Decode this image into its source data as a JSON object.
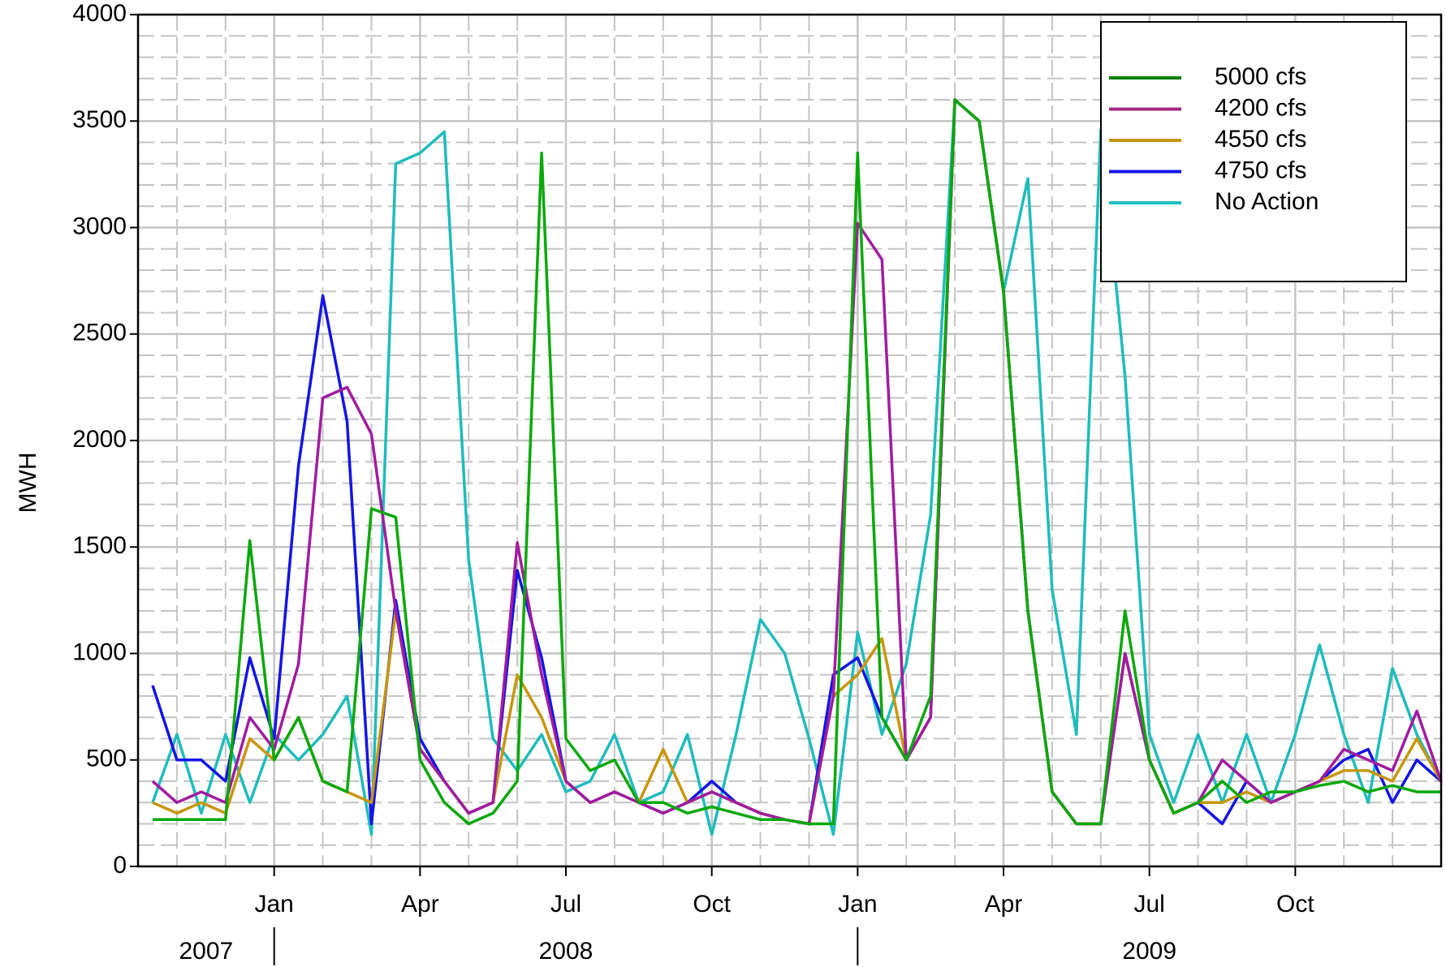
{
  "chart_data": {
    "type": "line",
    "y_label": "MWH",
    "x": [
      0.5,
      1,
      1.5,
      2,
      2.5,
      3,
      3.5,
      4,
      4.5,
      5,
      5.5,
      6,
      6.5,
      7,
      7.5,
      8,
      8.5,
      9,
      9.5,
      10,
      10.5,
      11,
      11.5,
      12,
      12.5,
      13,
      13.5,
      14,
      14.5,
      15,
      15.5,
      16,
      16.5,
      17,
      17.5,
      18,
      18.5,
      19,
      19.5,
      20,
      20.5,
      21,
      21.5,
      22,
      22.5,
      23,
      23.5,
      24,
      24.5,
      25,
      25.5,
      26,
      26.5,
      27
    ],
    "series": [
      {
        "name": "5000 cfs",
        "color": "#0aa80a",
        "legend_color": "#008000",
        "values": [
          220,
          220,
          220,
          220,
          1530,
          500,
          700,
          400,
          350,
          1680,
          1640,
          500,
          300,
          200,
          250,
          400,
          3350,
          600,
          450,
          500,
          300,
          300,
          250,
          280,
          250,
          220,
          220,
          200,
          200,
          3350,
          700,
          500,
          800,
          3600,
          3500,
          2700,
          1200,
          350,
          200,
          200,
          1200,
          500,
          250,
          300,
          400,
          300,
          350,
          350,
          380,
          400,
          350,
          380,
          350,
          350
        ]
      },
      {
        "name": "4200 cfs",
        "color": "#a01ca0",
        "legend_color": "#a02c80",
        "values": [
          400,
          300,
          350,
          300,
          700,
          550,
          950,
          2200,
          2250,
          2030,
          1200,
          550,
          400,
          250,
          300,
          1520,
          900,
          400,
          300,
          350,
          300,
          250,
          300,
          350,
          300,
          250,
          220,
          200,
          800,
          3020,
          2850,
          500,
          700,
          3600,
          3500,
          2700,
          1200,
          350,
          200,
          200,
          1000,
          500,
          250,
          300,
          500,
          400,
          300,
          350,
          400,
          550,
          500,
          450,
          730,
          400
        ]
      },
      {
        "name": "4550 cfs",
        "color": "#c8960a",
        "legend_color": "#c8960a",
        "values": [
          300,
          250,
          300,
          250,
          600,
          500,
          700,
          400,
          350,
          300,
          1200,
          550,
          400,
          250,
          300,
          900,
          700,
          400,
          300,
          350,
          300,
          550,
          300,
          350,
          300,
          250,
          220,
          200,
          800,
          900,
          1070,
          500,
          700,
          3600,
          3500,
          2700,
          1200,
          350,
          200,
          200,
          1000,
          500,
          250,
          300,
          300,
          350,
          300,
          350,
          400,
          450,
          450,
          400,
          600,
          400
        ]
      },
      {
        "name": "4750 cfs",
        "color": "#1414e6",
        "legend_color": "#1414e6",
        "values": [
          850,
          500,
          500,
          400,
          980,
          600,
          1880,
          2680,
          2090,
          200,
          1250,
          600,
          400,
          250,
          300,
          1390,
          980,
          400,
          300,
          350,
          300,
          250,
          300,
          400,
          300,
          250,
          220,
          200,
          900,
          980,
          700,
          500,
          700,
          3600,
          3500,
          2700,
          1200,
          350,
          200,
          200,
          1000,
          500,
          250,
          300,
          200,
          400,
          300,
          350,
          400,
          500,
          550,
          300,
          500,
          400
        ]
      },
      {
        "name": "No Action",
        "color": "#1ebcbc",
        "legend_color": "#20c0c0",
        "values": [
          300,
          620,
          250,
          620,
          300,
          620,
          500,
          620,
          800,
          150,
          3300,
          3350,
          3450,
          1440,
          600,
          450,
          620,
          350,
          400,
          620,
          300,
          350,
          620,
          150,
          620,
          1160,
          1000,
          600,
          150,
          1100,
          620,
          950,
          1650,
          3600,
          3500,
          2700,
          3230,
          1300,
          620,
          3460,
          2300,
          620,
          300,
          620,
          300,
          620,
          300,
          620,
          1040,
          620,
          300,
          930,
          620,
          400
        ]
      }
    ],
    "xlim": [
      0.2,
      27
    ],
    "xticks": [
      {
        "value": 3,
        "label": "Jan"
      },
      {
        "value": 6,
        "label": "Apr"
      },
      {
        "value": 9,
        "label": "Jul"
      },
      {
        "value": 12,
        "label": "Oct"
      },
      {
        "value": 15,
        "label": "Jan"
      },
      {
        "value": 18,
        "label": "Apr"
      },
      {
        "value": 21,
        "label": "Jul"
      },
      {
        "value": 24,
        "label": "Oct"
      }
    ],
    "x_minor_ticks": [
      1,
      2,
      4,
      5,
      7,
      8,
      10,
      11,
      13,
      14,
      16,
      17,
      19,
      20,
      22,
      23,
      25,
      26
    ],
    "years": [
      "2007",
      "2008",
      "2009"
    ],
    "year_boundaries": [
      3,
      15
    ],
    "ylim": [
      0,
      4000
    ],
    "yticks": [
      0,
      500,
      1000,
      1500,
      2000,
      2500,
      3000,
      3500,
      4000
    ],
    "y_minor_ticks": [
      100,
      200,
      300,
      400,
      600,
      700,
      800,
      900,
      1100,
      1200,
      1300,
      1400,
      1600,
      1700,
      1800,
      1900,
      2100,
      2200,
      2300,
      2400,
      2600,
      2700,
      2800,
      2900,
      3100,
      3200,
      3300,
      3400,
      3600,
      3700,
      3800,
      3900
    ],
    "grid": true
  }
}
